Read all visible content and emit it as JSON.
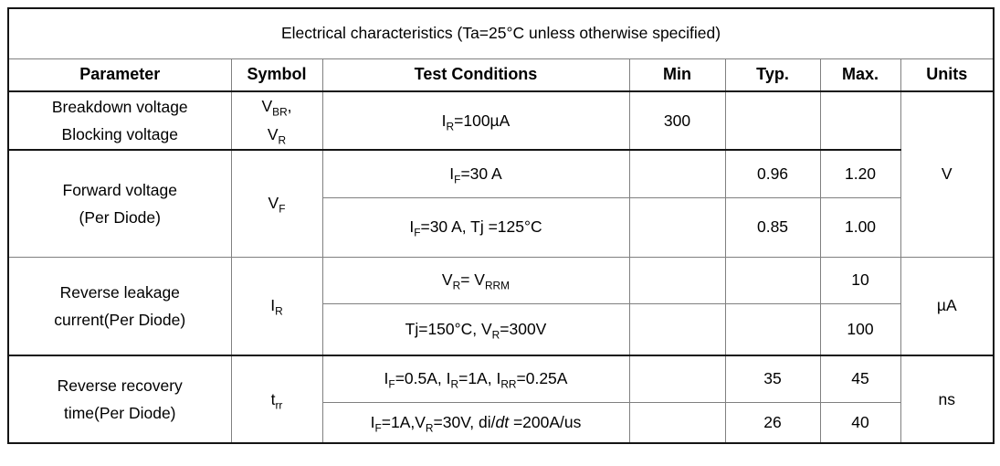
{
  "table": {
    "title": "Electrical characteristics (Ta=25°C unless otherwise specified)",
    "headers": [
      "Parameter",
      "Symbol",
      "Test Conditions",
      "Min",
      "Typ.",
      "Max.",
      "Units"
    ],
    "groups": [
      {
        "parameter_lines": [
          "Breakdown voltage",
          "Blocking voltage"
        ],
        "symbol_lines": [
          "V_BR_,",
          "V_R_"
        ],
        "rows": [
          {
            "condition": "I_R_=100µA",
            "min": "300",
            "typ": "",
            "max": ""
          }
        ]
      },
      {
        "parameter_lines": [
          "Forward voltage",
          "(Per Diode)"
        ],
        "symbol_lines": [
          "V_F_"
        ],
        "rows": [
          {
            "condition": "I_F_=30 A",
            "min": "",
            "typ": "0.96",
            "max": "1.20"
          },
          {
            "condition": "I_F_=30 A, Tj =125°C",
            "min": "",
            "typ": "0.85",
            "max": "1.00"
          }
        ]
      },
      {
        "parameter_lines": [
          "Reverse leakage",
          "current(Per Diode)"
        ],
        "symbol_lines": [
          "I_R_"
        ],
        "rows": [
          {
            "condition": "V_R_= V_RRM_",
            "min": "",
            "typ": "",
            "max": "10"
          },
          {
            "condition": "Tj=150°C, V_R_=300V",
            "min": "",
            "typ": "",
            "max": "100"
          }
        ]
      },
      {
        "parameter_lines": [
          "Reverse recovery",
          "time(Per Diode)"
        ],
        "symbol_lines": [
          "t_rr_"
        ],
        "rows": [
          {
            "condition": "I_F_=0.5A, I_R_=1A, I_RR_=0.25A",
            "min": "",
            "typ": "35",
            "max": "45"
          },
          {
            "condition": "I_F_=1A,V_R_=30V, di/*dt* =200A/us",
            "min": "",
            "typ": "26",
            "max": "40"
          }
        ]
      }
    ],
    "unit_spans": [
      {
        "label": "V",
        "rows": 3
      },
      {
        "label": "µA",
        "rows": 2
      },
      {
        "label": "ns",
        "rows": 2
      }
    ],
    "colors": {
      "background": "#ffffff",
      "text": "#000000",
      "border_outer": "#141414",
      "border_inner": "#808080"
    }
  }
}
